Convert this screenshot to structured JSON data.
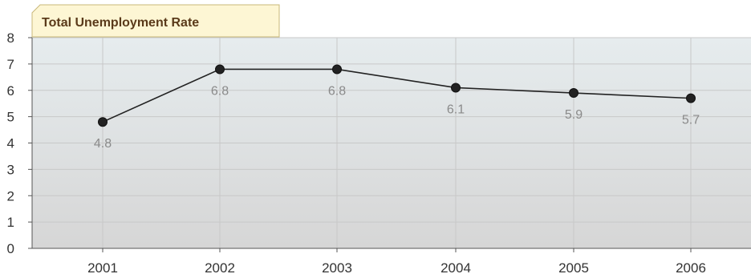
{
  "chart_data": {
    "type": "line",
    "title": "Total Unemployment Rate",
    "categories": [
      "2001",
      "2002",
      "2003",
      "2004",
      "2005",
      "2006"
    ],
    "series": [
      {
        "values": [
          4.8,
          6.8,
          6.8,
          6.1,
          5.9,
          5.7
        ]
      }
    ],
    "data_labels": [
      "4.8",
      "6.8",
      "6.8",
      "6.1",
      "5.9",
      "5.7"
    ],
    "y_ticks": [
      0,
      1,
      2,
      3,
      4,
      5,
      6,
      7,
      8
    ],
    "ylim": [
      0,
      8
    ],
    "grid": true,
    "colors": {
      "line": "#222222",
      "marker": "#222222",
      "plot_top": "#e6ecee",
      "plot_bottom": "#d6d6d6",
      "grid": "#c8c8c8",
      "title_bg": "#fdf6d4",
      "title_border": "#c9b87a"
    }
  }
}
